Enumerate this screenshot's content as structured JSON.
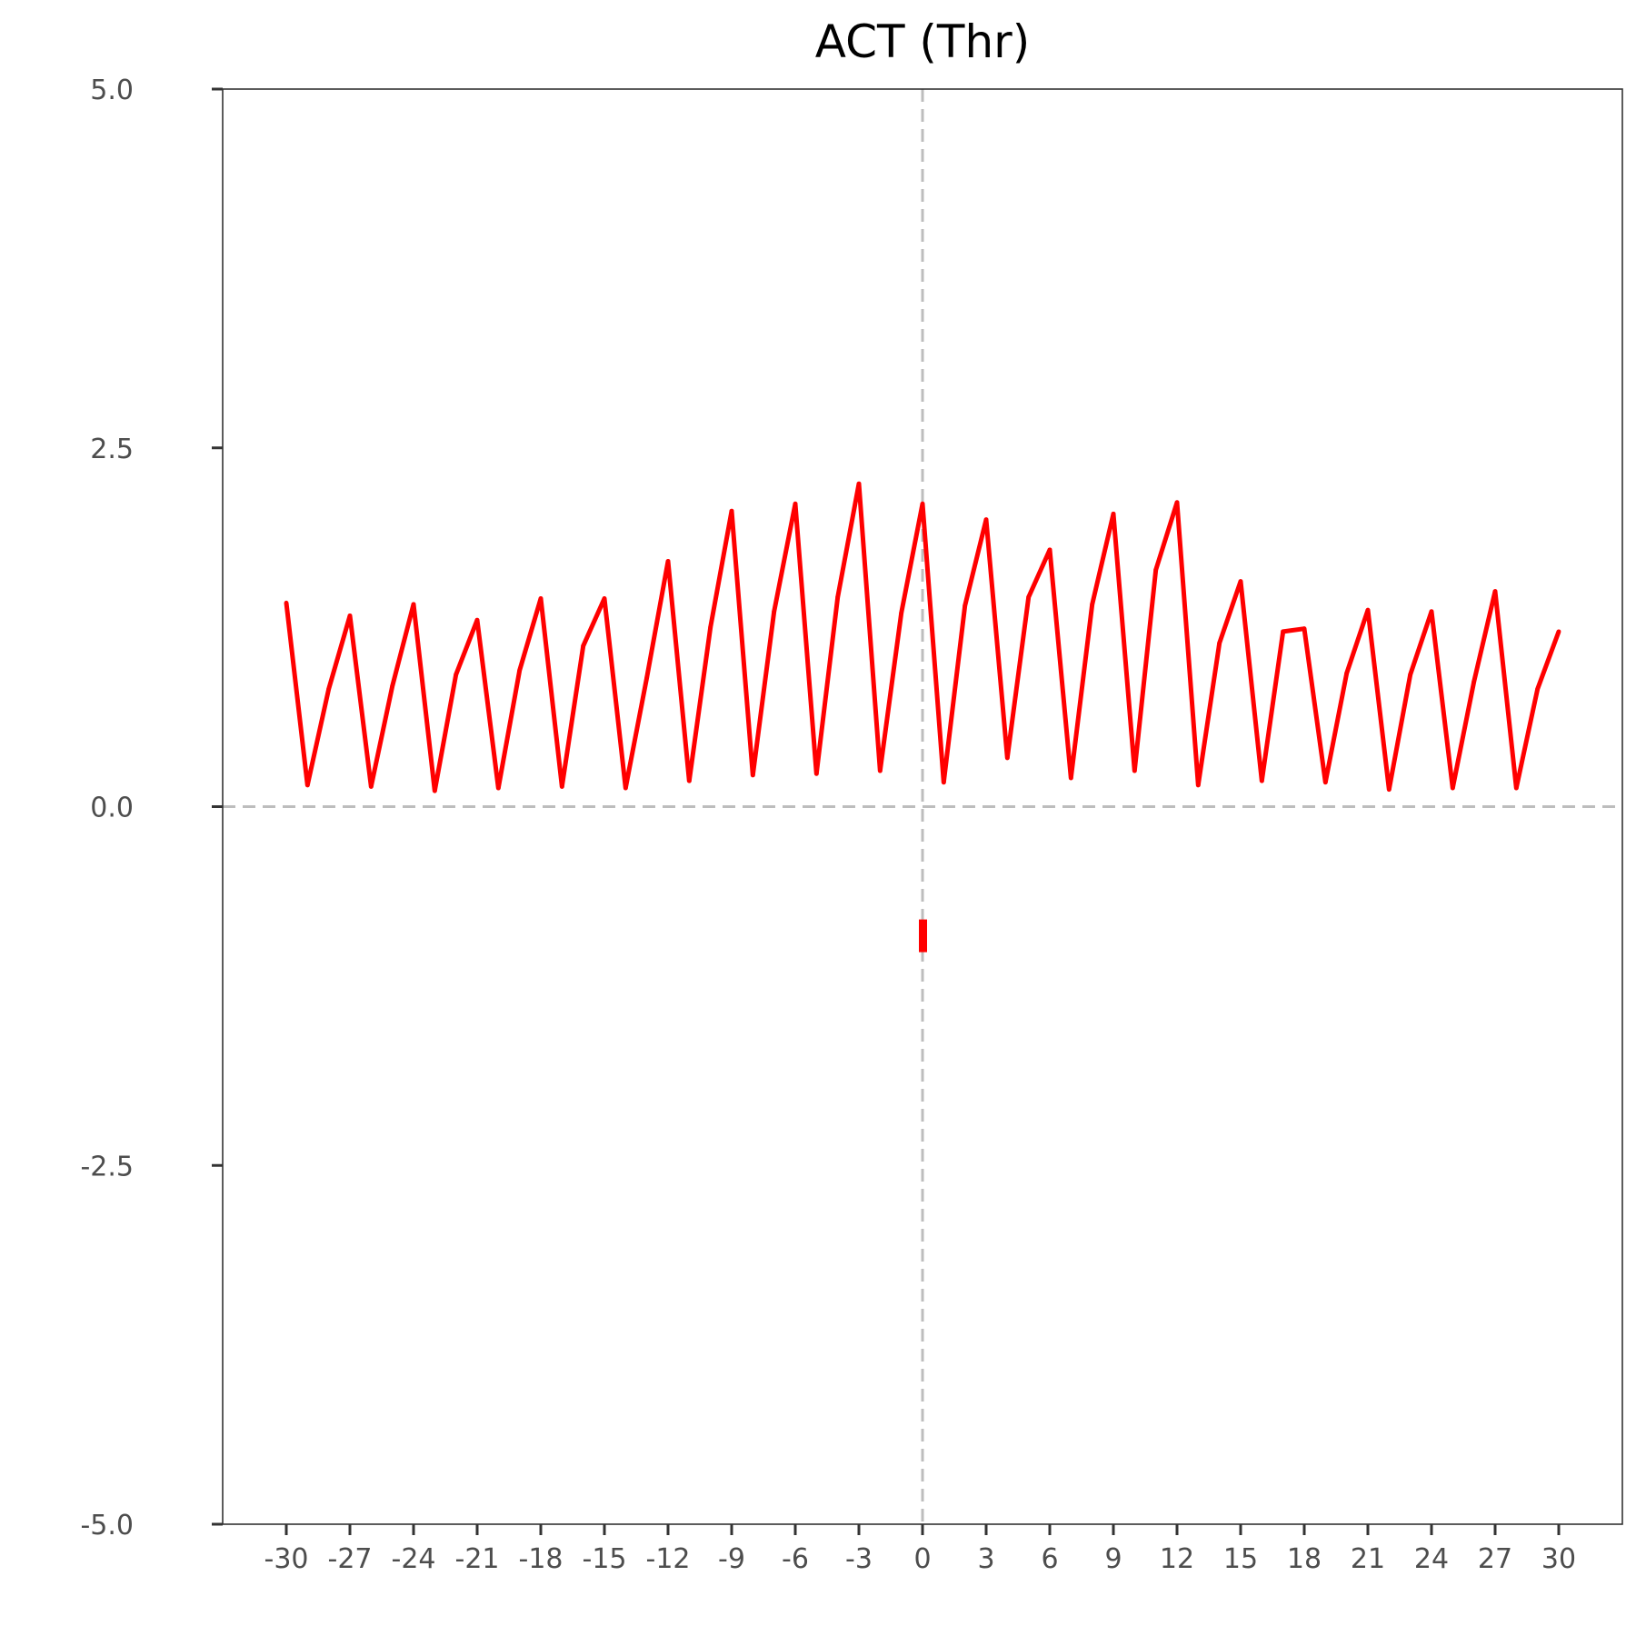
{
  "chart_data": {
    "type": "line",
    "title": "ACT (Thr)",
    "xlabel": "",
    "ylabel": "",
    "xlim": [
      -33,
      33
    ],
    "ylim": [
      -5,
      5
    ],
    "x_ticks": [
      -30,
      -27,
      -24,
      -21,
      -18,
      -15,
      -12,
      -9,
      -6,
      -3,
      0,
      3,
      6,
      9,
      12,
      15,
      18,
      21,
      24,
      27,
      30
    ],
    "x_tick_labels": [
      "-30",
      "-27",
      "-24",
      "-21",
      "-18",
      "-15",
      "-12",
      "-9",
      "-6",
      "-3",
      "0",
      "3",
      "6",
      "9",
      "12",
      "15",
      "18",
      "21",
      "24",
      "27",
      "30"
    ],
    "y_ticks": [
      5.0,
      2.5,
      0.0,
      -2.5,
      -5.0
    ],
    "y_tick_labels": [
      "5.0",
      "2.5",
      "0.0",
      "-2.5",
      "-5.0"
    ],
    "grid": false,
    "reference_lines": {
      "x": 0,
      "y": 0,
      "style": "dashed",
      "color": "#bdbdbd"
    },
    "series": [
      {
        "color": "#ff0000",
        "x": [
          -30,
          -29,
          -28,
          -27,
          -26,
          -25,
          -24,
          -23,
          -22,
          -21,
          -20,
          -19,
          -18,
          -17,
          -16,
          -15,
          -14,
          -13,
          -12,
          -11,
          -10,
          -9,
          -8,
          -7,
          -6,
          -5,
          -4,
          -3,
          -2,
          -1,
          0,
          1,
          2,
          3,
          4,
          5,
          6,
          7,
          8,
          9,
          10,
          11,
          12,
          13,
          14,
          15,
          16,
          17,
          18,
          19,
          20,
          21,
          22,
          23,
          24,
          25,
          26,
          27,
          28,
          29,
          30
        ],
        "y": [
          1.42,
          0.15,
          0.82,
          1.33,
          0.14,
          0.84,
          1.41,
          0.11,
          0.92,
          1.3,
          0.13,
          0.95,
          1.45,
          0.14,
          1.12,
          1.45,
          0.13,
          0.9,
          1.71,
          0.18,
          1.25,
          2.06,
          0.22,
          1.36,
          2.11,
          0.23,
          1.46,
          2.25,
          0.25,
          1.35,
          2.11,
          0.17,
          1.4,
          2.0,
          0.34,
          1.46,
          1.79,
          0.2,
          1.41,
          2.04,
          0.25,
          1.65,
          2.12,
          0.15,
          1.14,
          1.57,
          0.18,
          1.22,
          1.24,
          0.17,
          0.93,
          1.37,
          0.12,
          0.92,
          1.36,
          0.13,
          0.87,
          1.5,
          0.13,
          0.82,
          1.22
        ]
      }
    ],
    "marker": {
      "x": 0,
      "y": -0.9,
      "shape": "short vertical bar",
      "color": "#ff0000"
    }
  }
}
